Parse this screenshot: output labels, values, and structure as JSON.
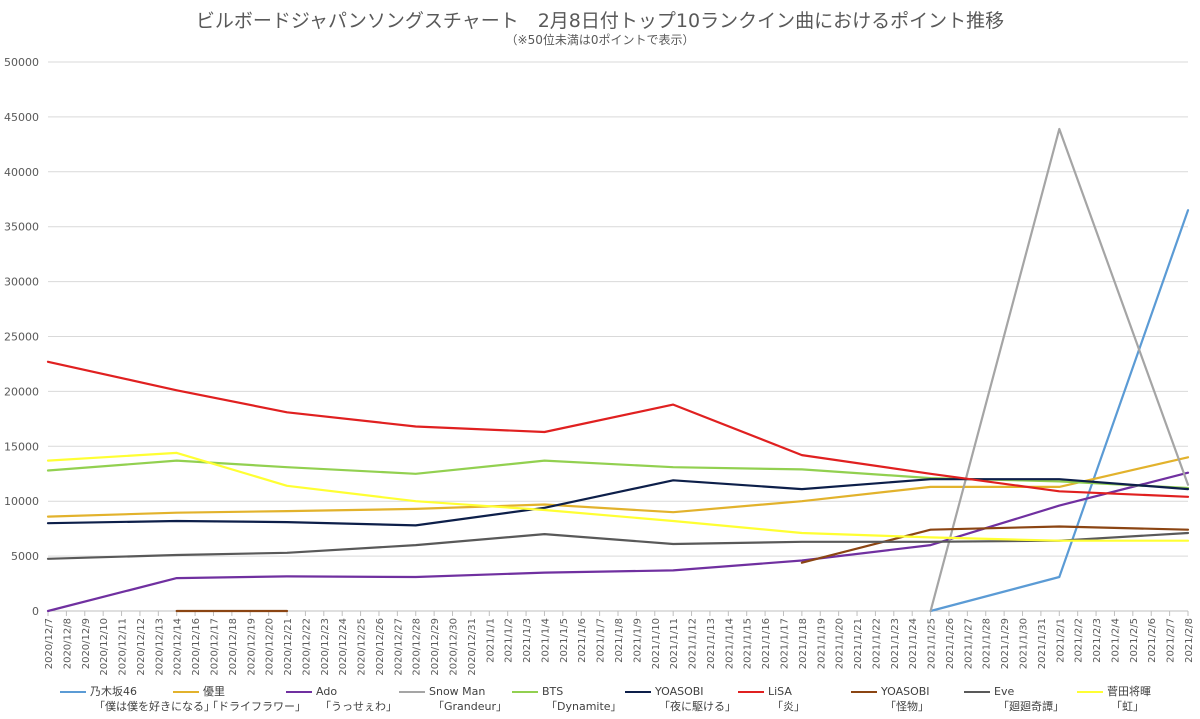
{
  "title": "ビルボードジャパンソングスチャート　2月8日付トップ10ランクイン曲におけるポイント推移",
  "subtitle": "（※50位未満は0ポイントで表示）",
  "chart_data": {
    "type": "line",
    "title": "ビルボードジャパンソングスチャート　2月8日付トップ10ランクイン曲におけるポイント推移",
    "subtitle": "（※50位未満は0ポイントで表示）",
    "ylim": [
      0,
      50000
    ],
    "yticks": [
      0,
      5000,
      10000,
      15000,
      20000,
      25000,
      30000,
      35000,
      40000,
      45000,
      50000
    ],
    "grid": "horizontal",
    "legend_position": "bottom",
    "categories": [
      "2020/12/7",
      "2020/12/8",
      "2020/12/9",
      "2020/12/10",
      "2020/12/11",
      "2020/12/12",
      "2020/12/13",
      "2020/12/14",
      "2020/12/16",
      "2020/12/17",
      "2020/12/18",
      "2020/12/19",
      "2020/12/20",
      "2020/12/21",
      "2020/12/22",
      "2020/12/23",
      "2020/12/24",
      "2020/12/25",
      "2020/12/26",
      "2020/12/27",
      "2020/12/28",
      "2020/12/29",
      "2020/12/30",
      "2020/12/31",
      "2021/1/1",
      "2021/1/2",
      "2021/1/3",
      "2021/1/4",
      "2021/1/5",
      "2021/1/6",
      "2021/1/7",
      "2021/1/8",
      "2021/1/9",
      "2021/1/10",
      "2021/1/11",
      "2021/1/12",
      "2021/1/13",
      "2021/1/14",
      "2021/1/15",
      "2021/1/16",
      "2021/1/17",
      "2021/1/18",
      "2021/1/19",
      "2021/1/20",
      "2021/1/21",
      "2021/1/22",
      "2021/1/23",
      "2021/1/24",
      "2021/1/25",
      "2021/1/26",
      "2021/1/27",
      "2021/1/28",
      "2021/1/29",
      "2021/1/30",
      "2021/1/31",
      "2021/2/1",
      "2021/2/2",
      "2021/2/3",
      "2021/2/4",
      "2021/2/5",
      "2021/2/6",
      "2021/2/7",
      "2021/2/8"
    ],
    "series": [
      {
        "name": "乃木坂46",
        "song": "「僕は僕を好きになる」",
        "color": "#5b9bd5",
        "points": [
          [
            "2021/1/25",
            0
          ],
          [
            "2021/2/1",
            3100
          ],
          [
            "2021/2/8",
            36500
          ]
        ]
      },
      {
        "name": "優里",
        "song": "「ドライフラワー」",
        "color": "#e2b22c",
        "points": [
          [
            "2020/12/7",
            8600
          ],
          [
            "2020/12/14",
            8950
          ],
          [
            "2020/12/21",
            9100
          ],
          [
            "2020/12/28",
            9300
          ],
          [
            "2021/1/4",
            9700
          ],
          [
            "2021/1/11",
            9000
          ],
          [
            "2021/1/18",
            10000
          ],
          [
            "2021/1/25",
            11300
          ],
          [
            "2021/2/1",
            11300
          ],
          [
            "2021/2/8",
            14000
          ]
        ]
      },
      {
        "name": "Ado",
        "song": "「うっせぇわ」",
        "color": "#7030a0",
        "points": [
          [
            "2020/12/7",
            0
          ],
          [
            "2020/12/14",
            3000
          ],
          [
            "2020/12/21",
            3150
          ],
          [
            "2020/12/28",
            3100
          ],
          [
            "2021/1/4",
            3500
          ],
          [
            "2021/1/11",
            3700
          ],
          [
            "2021/1/18",
            4600
          ],
          [
            "2021/1/25",
            6000
          ],
          [
            "2021/2/1",
            9600
          ],
          [
            "2021/2/8",
            12600
          ]
        ]
      },
      {
        "name": "Snow Man",
        "song": "「Grandeur」",
        "color": "#a5a5a5",
        "points": [
          [
            "2021/1/25",
            0
          ],
          [
            "2021/2/1",
            43900
          ],
          [
            "2021/2/8",
            11500
          ]
        ]
      },
      {
        "name": "BTS",
        "song": "「Dynamite」",
        "color": "#92d050",
        "points": [
          [
            "2020/12/7",
            12800
          ],
          [
            "2020/12/14",
            13700
          ],
          [
            "2020/12/21",
            13100
          ],
          [
            "2020/12/28",
            12500
          ],
          [
            "2021/1/4",
            13700
          ],
          [
            "2021/1/11",
            13100
          ],
          [
            "2021/1/18",
            12900
          ],
          [
            "2021/1/25",
            12100
          ],
          [
            "2021/2/1",
            11800
          ],
          [
            "2021/2/8",
            11200
          ]
        ]
      },
      {
        "name": "YOASOBI",
        "song": "「夜に駆ける」",
        "color": "#0d1f4a",
        "points": [
          [
            "2020/12/7",
            8000
          ],
          [
            "2020/12/14",
            8200
          ],
          [
            "2020/12/21",
            8100
          ],
          [
            "2020/12/28",
            7800
          ],
          [
            "2021/1/4",
            9400
          ],
          [
            "2021/1/11",
            11900
          ],
          [
            "2021/1/18",
            11100
          ],
          [
            "2021/1/25",
            12000
          ],
          [
            "2021/2/1",
            12000
          ],
          [
            "2021/2/8",
            11100
          ]
        ]
      },
      {
        "name": "LiSA",
        "song": "「炎」",
        "color": "#e02020",
        "points": [
          [
            "2020/12/7",
            22700
          ],
          [
            "2020/12/14",
            20100
          ],
          [
            "2020/12/21",
            18100
          ],
          [
            "2020/12/28",
            16800
          ],
          [
            "2021/1/4",
            16300
          ],
          [
            "2021/1/11",
            18800
          ],
          [
            "2021/1/18",
            14200
          ],
          [
            "2021/1/25",
            12500
          ],
          [
            "2021/2/1",
            10900
          ],
          [
            "2021/2/8",
            10400
          ]
        ]
      },
      {
        "name": "YOASOBI",
        "song": "「怪物」",
        "color": "#8b4513",
        "points": [
          [
            "2020/12/14",
            0
          ],
          [
            "2020/12/21",
            0
          ]
        ],
        "points2": [
          [
            "2021/1/18",
            4400
          ],
          [
            "2021/1/25",
            7400
          ],
          [
            "2021/2/1",
            7700
          ],
          [
            "2021/2/8",
            7400
          ]
        ]
      },
      {
        "name": "Eve",
        "song": "「廻廻奇譚」",
        "color": "#595959",
        "points": [
          [
            "2020/12/7",
            4750
          ],
          [
            "2020/12/14",
            5100
          ],
          [
            "2020/12/21",
            5300
          ],
          [
            "2020/12/28",
            6000
          ],
          [
            "2021/1/4",
            7000
          ],
          [
            "2021/1/11",
            6100
          ],
          [
            "2021/1/18",
            6300
          ],
          [
            "2021/1/25",
            6300
          ],
          [
            "2021/2/1",
            6400
          ],
          [
            "2021/2/8",
            7100
          ]
        ]
      },
      {
        "name": "菅田将暉",
        "song": "「虹」",
        "color": "#ffff33",
        "points": [
          [
            "2020/12/7",
            13700
          ],
          [
            "2020/12/14",
            14400
          ],
          [
            "2020/12/21",
            11400
          ],
          [
            "2020/12/28",
            10000
          ],
          [
            "2021/1/4",
            9200
          ],
          [
            "2021/1/11",
            8200
          ],
          [
            "2021/1/18",
            7100
          ],
          [
            "2021/1/25",
            6700
          ],
          [
            "2021/2/1",
            6400
          ],
          [
            "2021/2/8",
            6400
          ]
        ]
      }
    ]
  }
}
